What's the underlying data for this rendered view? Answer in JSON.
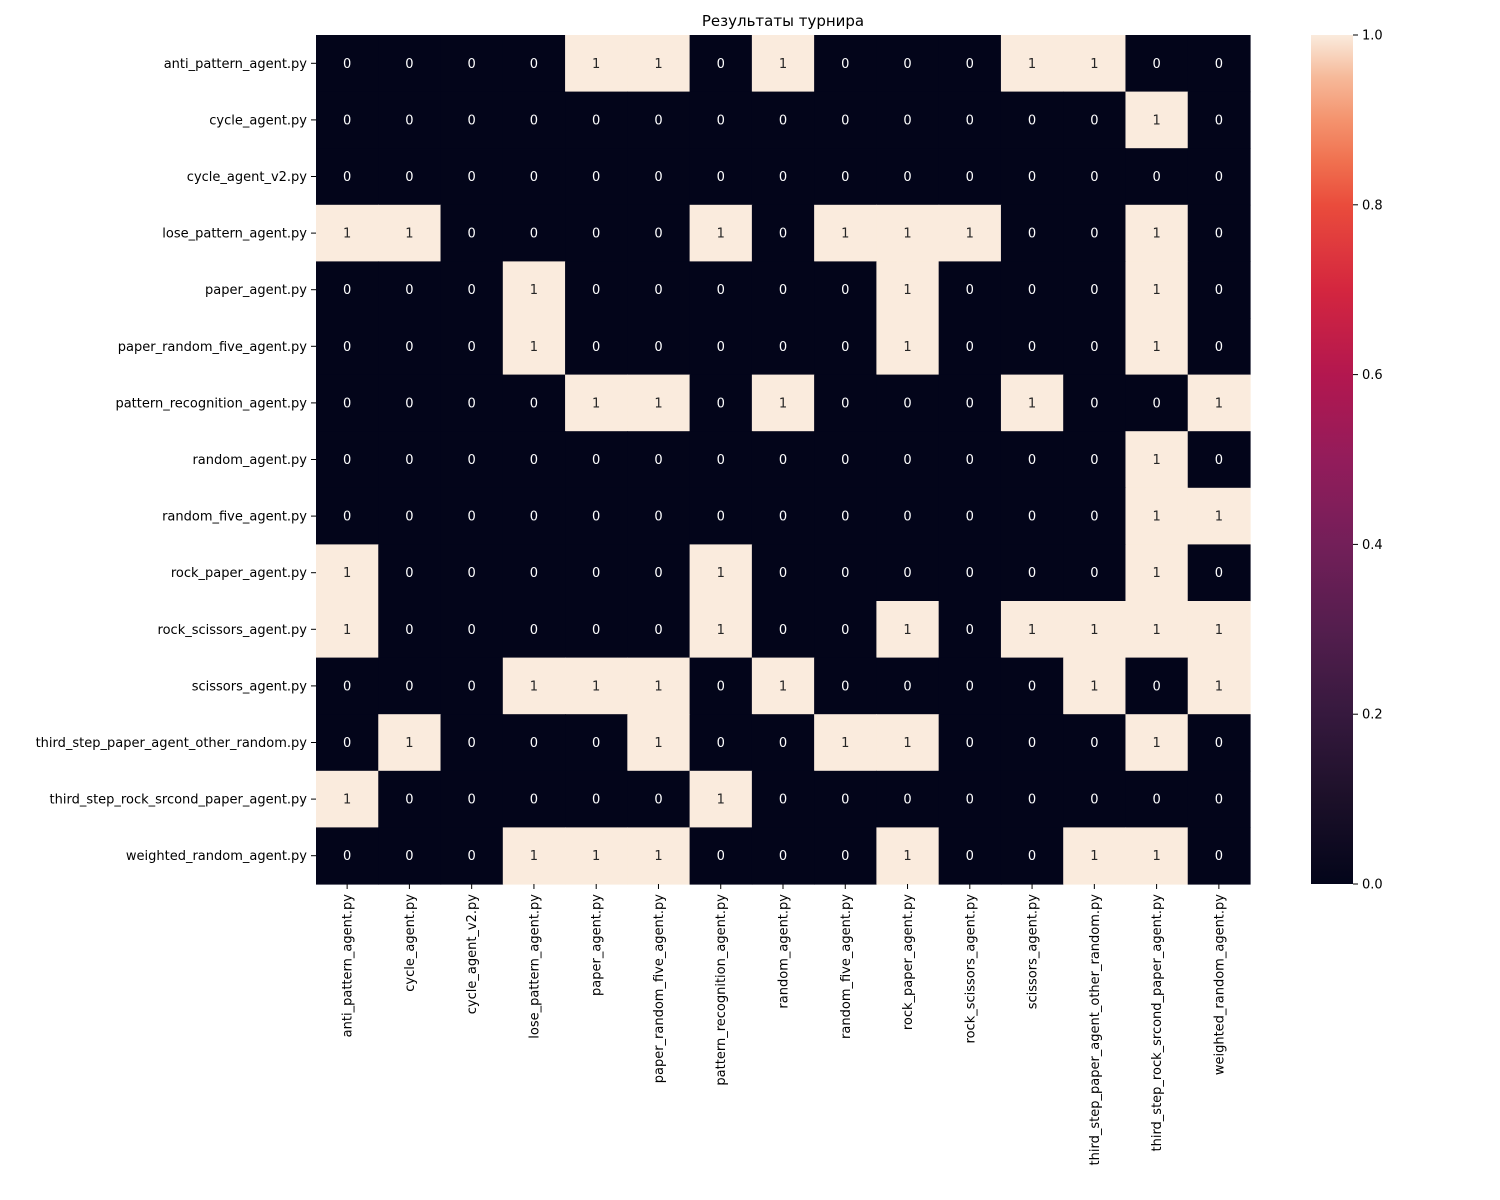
{
  "chart_data": {
    "type": "heatmap",
    "title": "Результаты турнира",
    "xlabel": "",
    "ylabel": "",
    "row_labels": [
      "anti_pattern_agent.py",
      "cycle_agent.py",
      "cycle_agent_v2.py",
      "lose_pattern_agent.py",
      "paper_agent.py",
      "paper_random_five_agent.py",
      "pattern_recognition_agent.py",
      "random_agent.py",
      "random_five_agent.py",
      "rock_paper_agent.py",
      "rock_scissors_agent.py",
      "scissors_agent.py",
      "third_step_paper_agent_other_random.py",
      "third_step_rock_srcond_paper_agent.py",
      "weighted_random_agent.py"
    ],
    "col_labels": [
      "anti_pattern_agent.py",
      "cycle_agent.py",
      "cycle_agent_v2.py",
      "lose_pattern_agent.py",
      "paper_agent.py",
      "paper_random_five_agent.py",
      "pattern_recognition_agent.py",
      "random_agent.py",
      "random_five_agent.py",
      "rock_paper_agent.py",
      "rock_scissors_agent.py",
      "scissors_agent.py",
      "third_step_paper_agent_other_random.py",
      "third_step_rock_srcond_paper_agent.py",
      "weighted_random_agent.py"
    ],
    "values": [
      [
        0,
        0,
        0,
        0,
        1,
        1,
        0,
        1,
        0,
        0,
        0,
        1,
        1,
        0,
        0
      ],
      [
        0,
        0,
        0,
        0,
        0,
        0,
        0,
        0,
        0,
        0,
        0,
        0,
        0,
        1,
        0
      ],
      [
        0,
        0,
        0,
        0,
        0,
        0,
        0,
        0,
        0,
        0,
        0,
        0,
        0,
        0,
        0
      ],
      [
        1,
        1,
        0,
        0,
        0,
        0,
        1,
        0,
        1,
        1,
        1,
        0,
        0,
        1,
        0
      ],
      [
        0,
        0,
        0,
        1,
        0,
        0,
        0,
        0,
        0,
        1,
        0,
        0,
        0,
        1,
        0
      ],
      [
        0,
        0,
        0,
        1,
        0,
        0,
        0,
        0,
        0,
        1,
        0,
        0,
        0,
        1,
        0
      ],
      [
        0,
        0,
        0,
        0,
        1,
        1,
        0,
        1,
        0,
        0,
        0,
        1,
        0,
        0,
        1
      ],
      [
        0,
        0,
        0,
        0,
        0,
        0,
        0,
        0,
        0,
        0,
        0,
        0,
        0,
        1,
        0
      ],
      [
        0,
        0,
        0,
        0,
        0,
        0,
        0,
        0,
        0,
        0,
        0,
        0,
        0,
        1,
        1
      ],
      [
        1,
        0,
        0,
        0,
        0,
        0,
        1,
        0,
        0,
        0,
        0,
        0,
        0,
        1,
        0
      ],
      [
        1,
        0,
        0,
        0,
        0,
        0,
        1,
        0,
        0,
        1,
        0,
        1,
        1,
        1,
        1
      ],
      [
        0,
        0,
        0,
        1,
        1,
        1,
        0,
        1,
        0,
        0,
        0,
        0,
        1,
        0,
        1
      ],
      [
        0,
        1,
        0,
        0,
        0,
        1,
        0,
        0,
        1,
        1,
        0,
        0,
        0,
        1,
        0
      ],
      [
        1,
        0,
        0,
        0,
        0,
        0,
        1,
        0,
        0,
        0,
        0,
        0,
        0,
        0,
        0
      ],
      [
        0,
        0,
        0,
        1,
        1,
        1,
        0,
        0,
        0,
        1,
        0,
        0,
        1,
        1,
        0
      ]
    ],
    "vmin": 0,
    "vmax": 1,
    "colormap": "rocket",
    "low_color": "#03051a",
    "high_color": "#faebdd",
    "annot_on_dark": "#ffffff",
    "annot_on_light": "#262626",
    "colorbar_ticks": [
      "0.0",
      "0.2",
      "0.4",
      "0.6",
      "0.8",
      "1.0"
    ],
    "grid": false,
    "legend": "colorbar-right"
  }
}
